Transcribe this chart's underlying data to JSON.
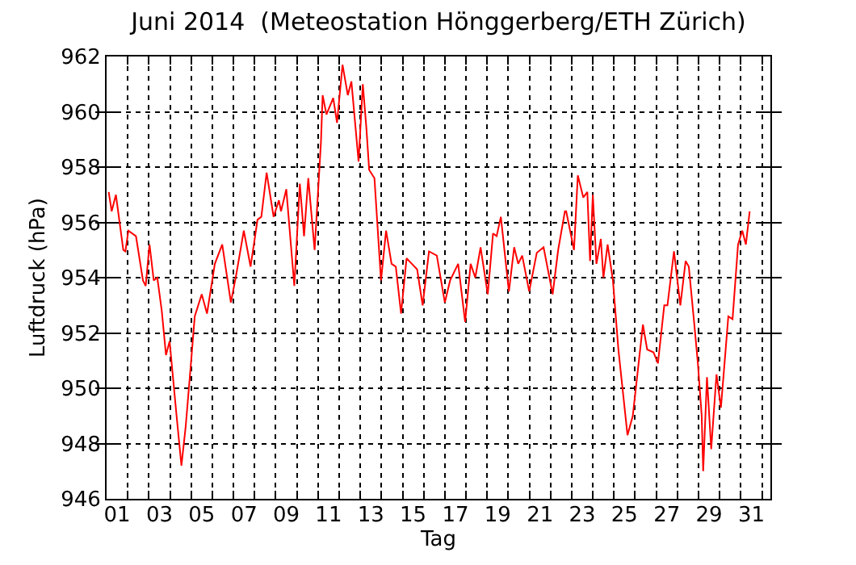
{
  "chart_data": {
    "type": "line",
    "title": "Juni 2014  (Meteostation Hönggerberg/ETH Zürich)",
    "xlabel": "Tag",
    "ylabel": "Luftdruck (hPa)",
    "x": [
      1.1,
      1.24,
      1.44,
      1.79,
      1.89,
      2.03,
      2.39,
      2.72,
      2.85,
      3.03,
      3.23,
      3.4,
      3.61,
      3.81,
      3.98,
      4.31,
      4.54,
      4.74,
      4.99,
      5.17,
      5.5,
      5.75,
      6.12,
      6.47,
      6.88,
      7.13,
      7.49,
      7.81,
      8.14,
      8.32,
      8.57,
      8.9,
      9.15,
      9.25,
      9.5,
      9.88,
      10.14,
      10.34,
      10.54,
      10.84,
      11.14,
      11.22,
      11.4,
      11.72,
      11.9,
      12.16,
      12.41,
      12.58,
      12.92,
      13.12,
      13.29,
      13.42,
      13.67,
      13.98,
      14.22,
      14.48,
      14.68,
      14.93,
      15.19,
      15.44,
      15.69,
      15.95,
      16.25,
      16.62,
      17.0,
      17.25,
      17.63,
      17.96,
      18.22,
      18.44,
      18.69,
      19.03,
      19.28,
      19.45,
      19.65,
      20.03,
      20.28,
      20.47,
      20.66,
      20.99,
      21.35,
      21.67,
      22.1,
      22.36,
      22.68,
      22.74,
      23.11,
      23.29,
      23.55,
      23.74,
      23.87,
      24.0,
      24.17,
      24.38,
      24.5,
      24.7,
      24.95,
      25.21,
      25.64,
      25.89,
      26.37,
      26.57,
      26.87,
      27.08,
      27.38,
      27.53,
      27.84,
      28.14,
      28.39,
      28.54,
      28.79,
      28.97,
      29.15,
      29.22,
      29.4,
      29.6,
      29.85,
      30.06,
      30.23,
      30.41,
      30.61,
      30.87,
      31.07,
      31.24,
      31.42
    ],
    "values": [
      957.1,
      956.4,
      957.0,
      955.0,
      954.95,
      955.7,
      955.5,
      953.9,
      953.7,
      955.2,
      953.9,
      954.0,
      952.8,
      951.2,
      951.7,
      949.0,
      947.2,
      948.6,
      950.9,
      952.6,
      953.4,
      952.7,
      954.5,
      955.2,
      953.1,
      954.1,
      955.7,
      954.4,
      956.1,
      956.2,
      957.8,
      956.2,
      956.8,
      956.4,
      957.2,
      953.7,
      957.4,
      955.5,
      957.6,
      955.0,
      958.9,
      960.6,
      959.9,
      960.5,
      959.6,
      961.7,
      960.6,
      961.1,
      958.2,
      961.0,
      959.4,
      957.9,
      957.6,
      953.9,
      955.7,
      954.5,
      954.4,
      952.7,
      954.7,
      954.5,
      954.3,
      953.0,
      954.95,
      954.8,
      953.1,
      953.9,
      954.5,
      952.4,
      954.5,
      954.0,
      955.1,
      953.4,
      955.6,
      955.5,
      956.2,
      953.5,
      955.1,
      954.5,
      954.8,
      953.5,
      954.9,
      955.1,
      953.4,
      955.0,
      956.4,
      956.4,
      955.0,
      957.7,
      956.9,
      957.1,
      954.6,
      957.0,
      954.5,
      955.4,
      954.0,
      955.2,
      953.9,
      951.4,
      948.3,
      949.0,
      952.3,
      951.4,
      951.3,
      950.9,
      953.0,
      953.0,
      954.95,
      953.0,
      954.6,
      954.4,
      952.4,
      950.9,
      949.0,
      947.0,
      950.4,
      947.8,
      950.5,
      949.3,
      950.9,
      952.6,
      952.5,
      955.2,
      955.7,
      955.2,
      956.4
    ],
    "color": "#ff0000",
    "marker": "none",
    "line_style": "solid",
    "grid": true,
    "xlim": [
      1,
      32.4
    ],
    "xticks": [
      {
        "value": 1.5,
        "label": "01"
      },
      {
        "value": 3.5,
        "label": "03"
      },
      {
        "value": 5.5,
        "label": "05"
      },
      {
        "value": 7.5,
        "label": "07"
      },
      {
        "value": 9.5,
        "label": "09"
      },
      {
        "value": 11.5,
        "label": "11"
      },
      {
        "value": 13.5,
        "label": "13"
      },
      {
        "value": 15.5,
        "label": "15"
      },
      {
        "value": 17.5,
        "label": "17"
      },
      {
        "value": 19.5,
        "label": "19"
      },
      {
        "value": 21.5,
        "label": "21"
      },
      {
        "value": 23.5,
        "label": "23"
      },
      {
        "value": 25.5,
        "label": "25"
      },
      {
        "value": 27.5,
        "label": "27"
      },
      {
        "value": 29.5,
        "label": "29"
      },
      {
        "value": 31.5,
        "label": "31"
      },
      {
        "value": 2,
        "label": null
      },
      {
        "value": 3,
        "label": null
      },
      {
        "value": 4,
        "label": null
      },
      {
        "value": 5,
        "label": null
      },
      {
        "value": 6,
        "label": null
      },
      {
        "value": 7,
        "label": null
      },
      {
        "value": 8,
        "label": null
      },
      {
        "value": 9,
        "label": null
      },
      {
        "value": 10,
        "label": null
      },
      {
        "value": 11,
        "label": null
      },
      {
        "value": 12,
        "label": null
      },
      {
        "value": 13,
        "label": null
      },
      {
        "value": 14,
        "label": null
      },
      {
        "value": 15,
        "label": null
      },
      {
        "value": 16,
        "label": null
      },
      {
        "value": 17,
        "label": null
      },
      {
        "value": 18,
        "label": null
      },
      {
        "value": 19,
        "label": null
      },
      {
        "value": 20,
        "label": null
      },
      {
        "value": 21,
        "label": null
      },
      {
        "value": 22,
        "label": null
      },
      {
        "value": 23,
        "label": null
      },
      {
        "value": 24,
        "label": null
      },
      {
        "value": 25,
        "label": null
      },
      {
        "value": 26,
        "label": null
      },
      {
        "value": 27,
        "label": null
      },
      {
        "value": 28,
        "label": null
      },
      {
        "value": 29,
        "label": null
      },
      {
        "value": 30,
        "label": null
      },
      {
        "value": 31,
        "label": null
      },
      {
        "value": 32,
        "label": null
      }
    ],
    "ylim": [
      946,
      962
    ],
    "yticks": [
      946,
      948,
      950,
      952,
      954,
      956,
      958,
      960,
      962
    ]
  }
}
